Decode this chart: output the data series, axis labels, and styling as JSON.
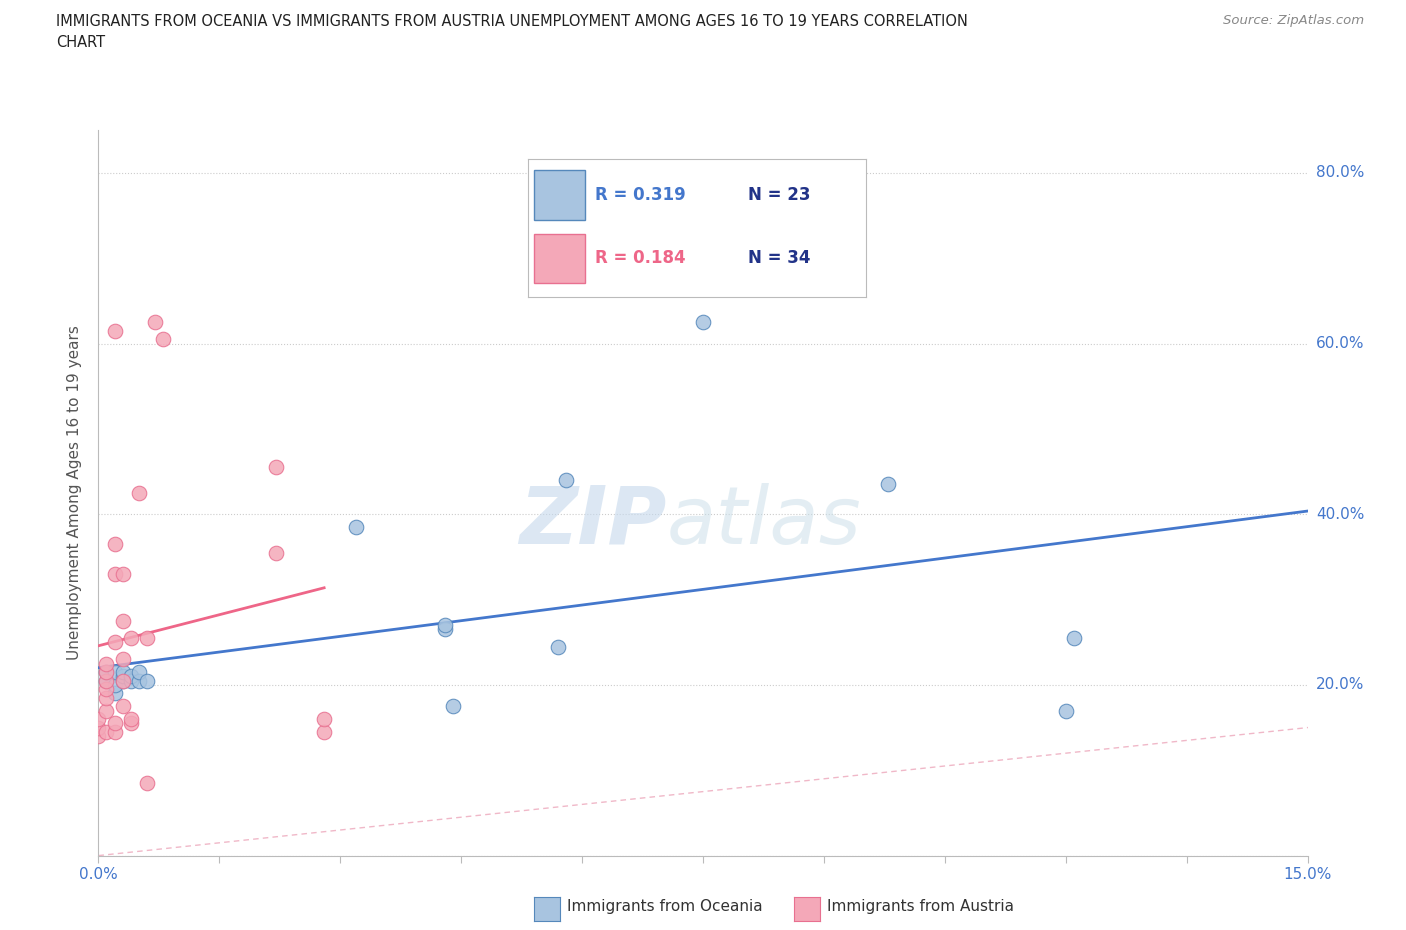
{
  "title_line1": "IMMIGRANTS FROM OCEANIA VS IMMIGRANTS FROM AUSTRIA UNEMPLOYMENT AMONG AGES 16 TO 19 YEARS CORRELATION",
  "title_line2": "CHART",
  "source_text": "Source: ZipAtlas.com",
  "ylabel": "Unemployment Among Ages 16 to 19 years",
  "xlim": [
    0.0,
    0.15
  ],
  "ylim": [
    0.0,
    0.85
  ],
  "xticks": [
    0.0,
    0.015,
    0.03,
    0.045,
    0.06,
    0.075,
    0.09,
    0.105,
    0.12,
    0.135,
    0.15
  ],
  "xtick_labels": [
    "0.0%",
    "",
    "",
    "",
    "",
    "",
    "",
    "",
    "",
    "",
    "15.0%"
  ],
  "ytick_right_labels": [
    "",
    "20.0%",
    "40.0%",
    "60.0%",
    "80.0%"
  ],
  "ytick_right_vals": [
    0.0,
    0.2,
    0.4,
    0.6,
    0.8
  ],
  "oceania_color": "#a8c4e0",
  "austria_color": "#f4a8b8",
  "oceania_edge_color": "#5588bb",
  "austria_edge_color": "#e87090",
  "oceania_line_color": "#4477cc",
  "austria_line_color": "#ee6688",
  "diag_line_color": "#f0b8c8",
  "grid_color": "#cccccc",
  "legend_R_color_oceania": "#4477cc",
  "legend_N_color_oceania": "#223388",
  "legend_R_color_austria": "#ee6688",
  "legend_N_color_austria": "#223388",
  "right_axis_color": "#4477cc",
  "oceania_x": [
    0.001,
    0.001,
    0.002,
    0.002,
    0.002,
    0.003,
    0.003,
    0.003,
    0.004,
    0.004,
    0.005,
    0.005,
    0.006,
    0.032,
    0.043,
    0.043,
    0.044,
    0.057,
    0.058,
    0.075,
    0.098,
    0.12,
    0.121
  ],
  "oceania_y": [
    0.205,
    0.215,
    0.19,
    0.2,
    0.215,
    0.205,
    0.21,
    0.215,
    0.205,
    0.21,
    0.205,
    0.215,
    0.205,
    0.385,
    0.265,
    0.27,
    0.175,
    0.245,
    0.44,
    0.625,
    0.435,
    0.17,
    0.255
  ],
  "austria_x": [
    0.0,
    0.0,
    0.0,
    0.001,
    0.001,
    0.001,
    0.001,
    0.001,
    0.001,
    0.001,
    0.002,
    0.002,
    0.002,
    0.002,
    0.002,
    0.002,
    0.003,
    0.003,
    0.003,
    0.003,
    0.003,
    0.004,
    0.004,
    0.004,
    0.005,
    0.006,
    0.006,
    0.007,
    0.008,
    0.022,
    0.022,
    0.028,
    0.028
  ],
  "austria_y": [
    0.14,
    0.15,
    0.16,
    0.145,
    0.17,
    0.185,
    0.195,
    0.205,
    0.215,
    0.225,
    0.145,
    0.155,
    0.25,
    0.33,
    0.365,
    0.615,
    0.175,
    0.205,
    0.23,
    0.275,
    0.33,
    0.155,
    0.16,
    0.255,
    0.425,
    0.085,
    0.255,
    0.625,
    0.605,
    0.355,
    0.455,
    0.145,
    0.16
  ],
  "watermark_zip": "ZIP",
  "watermark_atlas": "atlas",
  "background_color": "#ffffff"
}
